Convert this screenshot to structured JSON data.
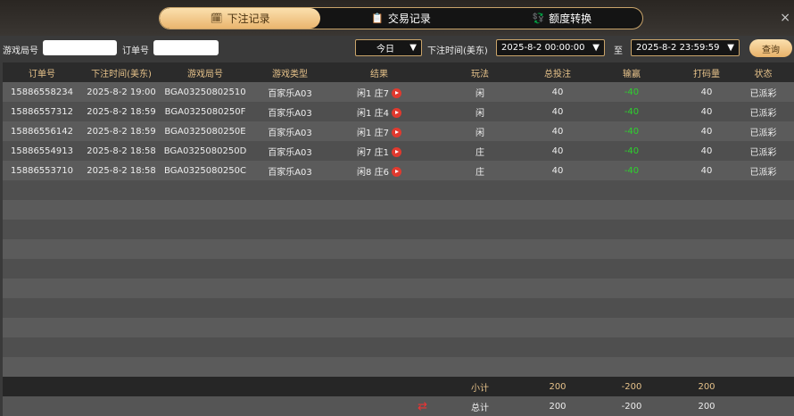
{
  "tabs": [
    {
      "label": "下注记录",
      "icon": "calendar-icon",
      "active": true
    },
    {
      "label": "交易记录",
      "icon": "clipboard-icon"
    },
    {
      "label": "额度转换",
      "icon": "coin-exchange-icon"
    }
  ],
  "close": "×",
  "filter": {
    "round_label": "游戏局号",
    "round_value": "",
    "order_label": "订单号",
    "order_value": "",
    "period": "今日",
    "time_label": "下注时间(美东)",
    "start": "2025-8-2 00:00:00",
    "to_label": "至",
    "end": "2025-8-2 23:59:59",
    "query": "查询"
  },
  "columns": [
    "订单号",
    "下注时间(美东)",
    "游戏局号",
    "游戏类型",
    "结果",
    "玩法",
    "总投注",
    "输赢",
    "打码量",
    "状态"
  ],
  "rows": [
    [
      "15886558234",
      "2025-8-2 19:00",
      "BGA03250802510",
      "百家乐A03",
      "闲1 庄7",
      "闲",
      "40",
      "-40",
      "40",
      "已派彩"
    ],
    [
      "15886557312",
      "2025-8-2 18:59",
      "BGA0325080250F",
      "百家乐A03",
      "闲1 庄4",
      "闲",
      "40",
      "-40",
      "40",
      "已派彩"
    ],
    [
      "15886556142",
      "2025-8-2 18:59",
      "BGA0325080250E",
      "百家乐A03",
      "闲1 庄7",
      "闲",
      "40",
      "-40",
      "40",
      "已派彩"
    ],
    [
      "15886554913",
      "2025-8-2 18:58",
      "BGA0325080250D",
      "百家乐A03",
      "闲7 庄1",
      "庄",
      "40",
      "-40",
      "40",
      "已派彩"
    ],
    [
      "15886553710",
      "2025-8-2 18:58",
      "BGA0325080250C",
      "百家乐A03",
      "闲8 庄6",
      "庄",
      "40",
      "-40",
      "40",
      "已派彩"
    ]
  ],
  "subtotal": {
    "label": "小计",
    "bet": "200",
    "win": "-200",
    "turnover": "200"
  },
  "total": {
    "label": "总计",
    "bet": "200",
    "win": "-200",
    "turnover": "200"
  },
  "colors": {
    "accent": "#eab56e",
    "negative": "#2ed12e"
  }
}
